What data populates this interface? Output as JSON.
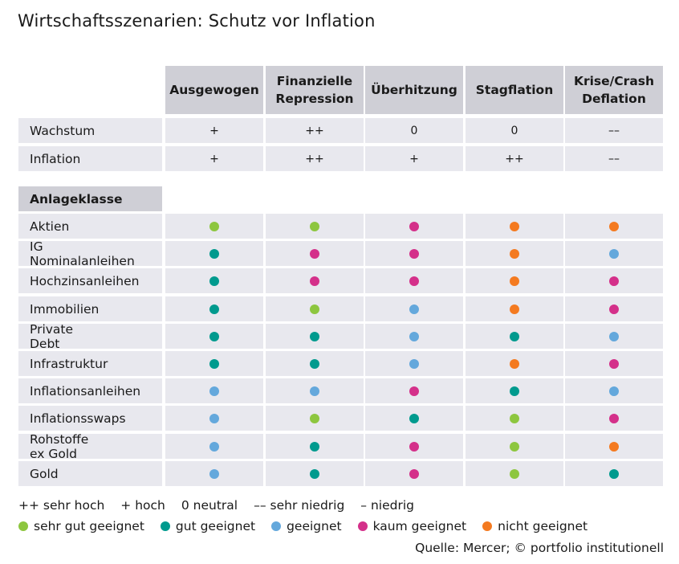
{
  "title": "Wirtschaftsszenarien: Schutz vor Inflation",
  "chart_data": {
    "type": "table",
    "columns": [
      "Ausgewogen",
      "Finanzielle\nRepression",
      "Überhitzung",
      "Stagflation",
      "Krise/Crash\nDeflation"
    ],
    "macro_rows": [
      {
        "label": "Wachstum",
        "values": [
          "+",
          "++",
          "0",
          "0",
          "––"
        ]
      },
      {
        "label": "Inflation",
        "values": [
          "+",
          "++",
          "+",
          "++",
          "––"
        ]
      }
    ],
    "section_label": "Anlageklasse",
    "asset_rows": [
      {
        "label": "Aktien",
        "ratings": [
          "sehr_gut",
          "sehr_gut",
          "kaum",
          "nicht",
          "nicht"
        ]
      },
      {
        "label": "IG Nominalanleihen",
        "ratings": [
          "gut",
          "kaum",
          "kaum",
          "nicht",
          "geeignet"
        ]
      },
      {
        "label": "Hochzinsanleihen",
        "ratings": [
          "gut",
          "kaum",
          "kaum",
          "nicht",
          "kaum"
        ]
      },
      {
        "label": "Immobilien",
        "ratings": [
          "gut",
          "sehr_gut",
          "geeignet",
          "nicht",
          "kaum"
        ]
      },
      {
        "label": "Private Debt",
        "ratings": [
          "gut",
          "gut",
          "geeignet",
          "gut",
          "geeignet"
        ]
      },
      {
        "label": "Infrastruktur",
        "ratings": [
          "gut",
          "gut",
          "geeignet",
          "nicht",
          "kaum"
        ]
      },
      {
        "label": "Inflationsanleihen",
        "ratings": [
          "geeignet",
          "geeignet",
          "kaum",
          "gut",
          "geeignet"
        ]
      },
      {
        "label": "Inflationsswaps",
        "ratings": [
          "geeignet",
          "sehr_gut",
          "gut",
          "sehr_gut",
          "kaum"
        ]
      },
      {
        "label": "Rohstoffe ex Gold",
        "ratings": [
          "geeignet",
          "gut",
          "kaum",
          "sehr_gut",
          "nicht"
        ]
      },
      {
        "label": "Gold",
        "ratings": [
          "geeignet",
          "gut",
          "kaum",
          "sehr_gut",
          "gut"
        ]
      }
    ],
    "rating_colors": {
      "sehr_gut": "#8dc63f",
      "gut": "#009a8e",
      "geeignet": "#64a8dc",
      "kaum": "#d4308a",
      "nicht": "#f47a20"
    }
  },
  "legend_symbols": [
    "++ sehr hoch",
    "+ hoch",
    "0 neutral",
    "–– sehr niedrig",
    "– niedrig"
  ],
  "legend_colors": [
    {
      "key": "sehr_gut",
      "label": "sehr gut geeignet"
    },
    {
      "key": "gut",
      "label": "gut geeignet"
    },
    {
      "key": "geeignet",
      "label": "geeignet"
    },
    {
      "key": "kaum",
      "label": "kaum geeignet"
    },
    {
      "key": "nicht",
      "label": "nicht geeignet"
    }
  ],
  "source": "Quelle: Mercer; © portfolio institutionell"
}
